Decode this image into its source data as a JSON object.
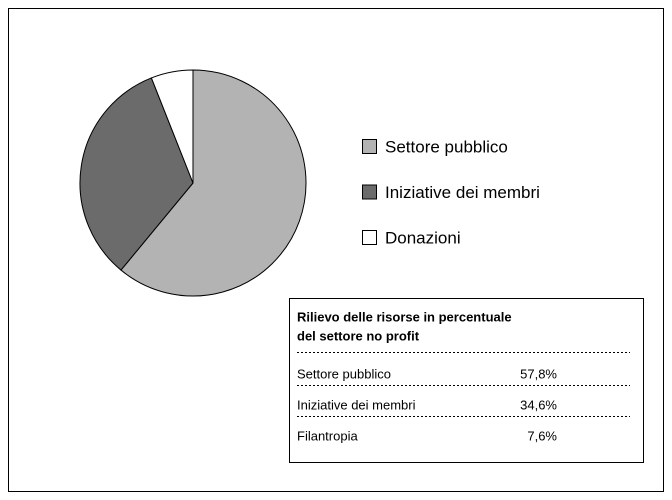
{
  "chart_data": {
    "type": "pie",
    "categories": [
      "Settore pubblico",
      "Iniziative dei membri",
      "Donazioni"
    ],
    "values": [
      61,
      33,
      6
    ],
    "colors": [
      "#b3b3b3",
      "#6b6b6b",
      "#ffffff"
    ]
  },
  "table": {
    "title": [
      "Rilievo delle risorse in percentuale",
      "del settore no profit"
    ],
    "rows": [
      [
        "Settore pubblico",
        "57,8%"
      ],
      [
        "Iniziative dei membri",
        "34,6%"
      ],
      [
        "Filantropia",
        "7,6%"
      ]
    ]
  }
}
